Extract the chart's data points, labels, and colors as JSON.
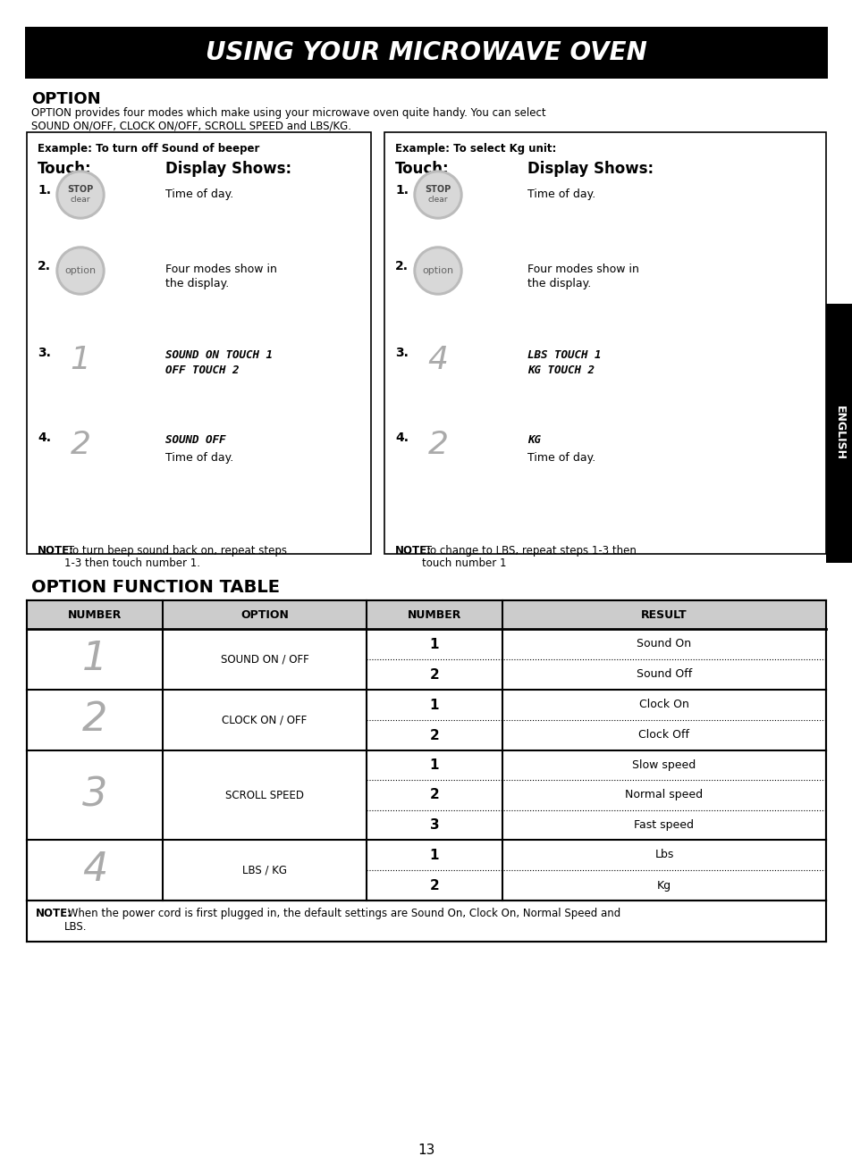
{
  "title": "USING YOUR MICROWAVE OVEN",
  "section1_title": "OPTION",
  "section1_desc1": "OPTION provides four modes which make using your microwave oven quite handy. You can select",
  "section1_desc2": "SOUND ON/OFF, CLOCK ON/OFF, SCROLL SPEED and LBS/KG.",
  "box1_example": "Example: To turn off Sound of beeper",
  "box1_touch_header": "Touch:",
  "box1_display_header": "Display Shows:",
  "box2_example": "Example: To select Kg unit:",
  "box2_touch_header": "Touch:",
  "box2_display_header": "Display Shows:",
  "section2_title": "OPTION FUNCTION TABLE",
  "table_headers": [
    "NUMBER",
    "OPTION",
    "NUMBER",
    "RESULT"
  ],
  "english_label": "ENGLISH",
  "page_number": "13",
  "note1_bold": "NOTE:",
  "note1_rest": " To turn beep sound back on, repeat steps\n1-3 then touch number 1.",
  "note2_bold": "NOTE:",
  "note2_rest": " To change to LBS, repeat steps 1-3 then\ntouch number 1",
  "table_note_bold": "NOTE:",
  "table_note_rest": " When the power cord is first plugged in, the default settings are Sound On, Clock On, Normal Speed and",
  "table_note_line2": "LBS.",
  "bg_color": "#ffffff",
  "header_bg": "#000000",
  "header_fg": "#ffffff",
  "rows_data": [
    {
      "num": "1",
      "option": "SOUND ON / OFF",
      "sub": [
        [
          "1",
          "Sound On"
        ],
        [
          "2",
          "Sound Off"
        ]
      ]
    },
    {
      "num": "2",
      "option": "CLOCK ON / OFF",
      "sub": [
        [
          "1",
          "Clock On"
        ],
        [
          "2",
          "Clock Off"
        ]
      ]
    },
    {
      "num": "3",
      "option": "SCROLL SPEED",
      "sub": [
        [
          "1",
          "Slow speed"
        ],
        [
          "2",
          "Normal speed"
        ],
        [
          "3",
          "Fast speed"
        ]
      ]
    },
    {
      "num": "4",
      "option": "LBS / KG",
      "sub": [
        [
          "1",
          "Lbs"
        ],
        [
          "2",
          "Kg"
        ]
      ]
    }
  ]
}
